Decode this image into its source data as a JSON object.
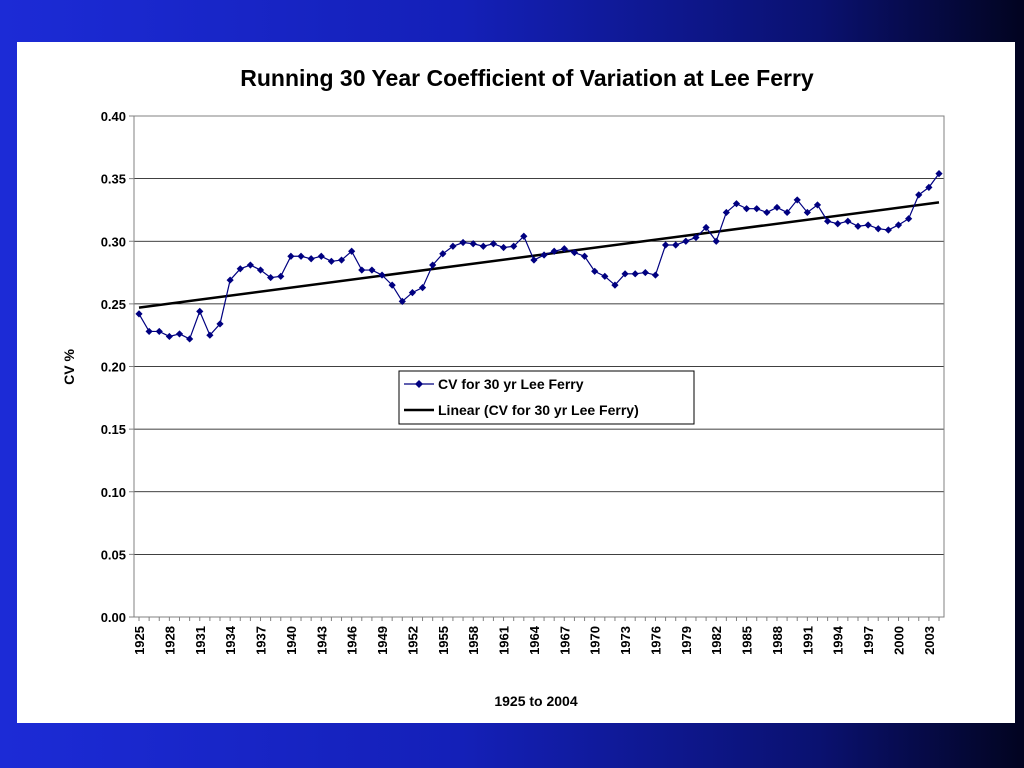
{
  "chart_data": {
    "type": "line",
    "title": "Running 30 Year Coefficient of Variation at Lee Ferry",
    "xlabel": "1925 to 2004",
    "ylabel": "CV %",
    "ylim": [
      0,
      0.4
    ],
    "y_ticks": [
      "0.00",
      "0.05",
      "0.10",
      "0.15",
      "0.20",
      "0.25",
      "0.30",
      "0.35",
      "0.40"
    ],
    "x_ticks": [
      "1925",
      "1928",
      "1931",
      "1934",
      "1937",
      "1940",
      "1943",
      "1946",
      "1949",
      "1952",
      "1955",
      "1958",
      "1961",
      "1964",
      "1967",
      "1970",
      "1973",
      "1976",
      "1979",
      "1982",
      "1985",
      "1988",
      "1991",
      "1994",
      "1997",
      "2000",
      "2003"
    ],
    "grid": "horizontal",
    "legend_position": "center",
    "x": [
      1925,
      1926,
      1927,
      1928,
      1929,
      1930,
      1931,
      1932,
      1933,
      1934,
      1935,
      1936,
      1937,
      1938,
      1939,
      1940,
      1941,
      1942,
      1943,
      1944,
      1945,
      1946,
      1947,
      1948,
      1949,
      1950,
      1951,
      1952,
      1953,
      1954,
      1955,
      1956,
      1957,
      1958,
      1959,
      1960,
      1961,
      1962,
      1963,
      1964,
      1965,
      1966,
      1967,
      1968,
      1969,
      1970,
      1971,
      1972,
      1973,
      1974,
      1975,
      1976,
      1977,
      1978,
      1979,
      1980,
      1981,
      1982,
      1983,
      1984,
      1985,
      1986,
      1987,
      1988,
      1989,
      1990,
      1991,
      1992,
      1993,
      1994,
      1995,
      1996,
      1997,
      1998,
      1999,
      2000,
      2001,
      2002,
      2003,
      2004
    ],
    "series": [
      {
        "name": "CV for 30 yr Lee Ferry",
        "color": "#000080",
        "marker": "diamond",
        "values": [
          0.242,
          0.228,
          0.228,
          0.224,
          0.226,
          0.222,
          0.244,
          0.225,
          0.234,
          0.269,
          0.278,
          0.281,
          0.277,
          0.271,
          0.272,
          0.288,
          0.288,
          0.286,
          0.288,
          0.284,
          0.285,
          0.292,
          0.277,
          0.277,
          0.273,
          0.265,
          0.252,
          0.259,
          0.263,
          0.281,
          0.29,
          0.296,
          0.299,
          0.298,
          0.296,
          0.298,
          0.295,
          0.296,
          0.304,
          0.285,
          0.289,
          0.292,
          0.294,
          0.291,
          0.288,
          0.276,
          0.272,
          0.265,
          0.274,
          0.274,
          0.275,
          0.273,
          0.297,
          0.297,
          0.3,
          0.303,
          0.311,
          0.3,
          0.323,
          0.33,
          0.326,
          0.326,
          0.323,
          0.327,
          0.323,
          0.333,
          0.323,
          0.329,
          0.316,
          0.314,
          0.316,
          0.312,
          0.313,
          0.31,
          0.309,
          0.313,
          0.318,
          0.337,
          0.343,
          0.354
        ]
      },
      {
        "name": "Linear (CV for 30 yr Lee Ferry)",
        "color": "#000000",
        "marker": "none",
        "trendline": {
          "start": [
            1925,
            0.247
          ],
          "end": [
            2004,
            0.331
          ]
        }
      }
    ]
  }
}
